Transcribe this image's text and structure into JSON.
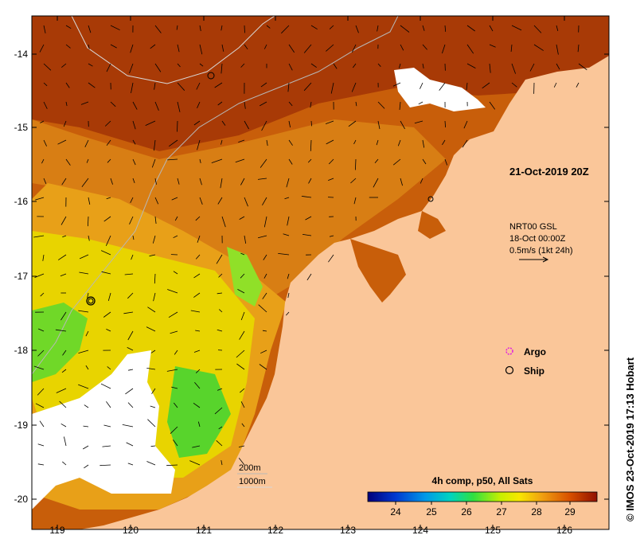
{
  "timestamp": "21-Oct-2019 20Z",
  "current_legend": {
    "line1": "NRT00 GSL",
    "line2": "18-Oct 00:00Z",
    "line3": "0.5m/s (1kt 24h)"
  },
  "symbols": {
    "argo": "Argo",
    "ship": "Ship"
  },
  "isobaths": {
    "shallow": "200m",
    "deep": "1000m"
  },
  "colorbar": {
    "title": "4h comp, p50, All Sats",
    "ticks": [
      "24",
      "25",
      "26",
      "27",
      "28",
      "29"
    ]
  },
  "axes": {
    "lon_ticks": [
      "119",
      "120",
      "121",
      "122",
      "123",
      "124",
      "125",
      "126"
    ],
    "lat_ticks": [
      "-14",
      "-15",
      "-16",
      "-17",
      "-18",
      "-19",
      "-20"
    ]
  },
  "credit": "© IMOS 23-Oct-2019 17:13 Hobart",
  "colors": {
    "land": "#fac699",
    "cloud": "#ffffff",
    "sst_29": "#b02a04",
    "sst_28": "#f0b820",
    "sst_27": "#eef000",
    "sst_26": "#55d92a"
  }
}
